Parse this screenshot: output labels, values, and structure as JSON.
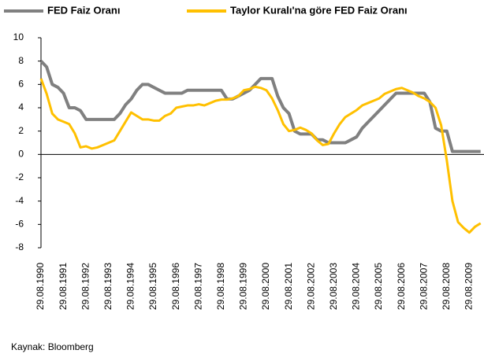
{
  "chart_data": {
    "type": "line",
    "source": "Kaynak: Bloomberg",
    "categories": [
      "29.08.1990",
      null,
      null,
      null,
      "29.08.1991",
      null,
      null,
      null,
      "29.08.1992",
      null,
      null,
      null,
      "29.08.1993",
      null,
      null,
      null,
      "29.08.1994",
      null,
      null,
      null,
      "29.08.1995",
      null,
      null,
      null,
      "29.08.1996",
      null,
      null,
      null,
      "29.08.1997",
      null,
      null,
      null,
      "29.08.1998",
      null,
      null,
      null,
      "29.08.1999",
      null,
      null,
      null,
      "29.08.2000",
      null,
      null,
      null,
      "29.08.2001",
      null,
      null,
      null,
      "29.08.2002",
      null,
      null,
      null,
      "29.08.2003",
      null,
      null,
      null,
      "29.08.2004",
      null,
      null,
      null,
      "29.08.2005",
      null,
      null,
      null,
      "29.08.2006",
      null,
      null,
      null,
      "29.08.2007",
      null,
      null,
      null,
      "29.08.2008",
      null,
      null,
      null,
      "29.08.2009",
      null,
      null
    ],
    "series": [
      {
        "name": "FED Faiz Oranı",
        "color": "#808080",
        "values": [
          8,
          7.5,
          6,
          5.75,
          5.25,
          4,
          4,
          3.75,
          3,
          3,
          3,
          3,
          3,
          3,
          3.5,
          4.25,
          4.75,
          5.5,
          6,
          6,
          5.75,
          5.5,
          5.25,
          5.25,
          5.25,
          5.25,
          5.5,
          5.5,
          5.5,
          5.5,
          5.5,
          5.5,
          5.5,
          4.75,
          4.75,
          5,
          5.25,
          5.5,
          6,
          6.5,
          6.5,
          6.5,
          5,
          4,
          3.5,
          2,
          1.75,
          1.75,
          1.75,
          1.25,
          1.25,
          1,
          1,
          1,
          1,
          1.25,
          1.5,
          2.25,
          2.75,
          3.25,
          3.75,
          4.25,
          4.75,
          5.25,
          5.25,
          5.25,
          5.25,
          5.25,
          5.25,
          4.5,
          2.25,
          2,
          2,
          0.25,
          0.25,
          0.25,
          0.25,
          0.25,
          0.25
        ]
      },
      {
        "name": "Taylor Kuralı'na göre FED Faiz Oranı",
        "color": "#FFC000",
        "values": [
          6.5,
          5.2,
          3.5,
          3,
          2.8,
          2.6,
          1.8,
          0.6,
          0.7,
          0.5,
          0.6,
          0.8,
          1,
          1.2,
          2,
          2.8,
          3.6,
          3.3,
          3,
          3,
          2.9,
          2.9,
          3.3,
          3.5,
          4,
          4.1,
          4.2,
          4.2,
          4.3,
          4.2,
          4.4,
          4.6,
          4.7,
          4.7,
          4.8,
          5,
          5.5,
          5.6,
          5.8,
          5.7,
          5.5,
          4.8,
          3.8,
          2.6,
          2,
          2.1,
          2.3,
          2.1,
          1.8,
          1.2,
          0.8,
          0.9,
          1.8,
          2.6,
          3.2,
          3.5,
          3.8,
          4.2,
          4.4,
          4.6,
          4.8,
          5.2,
          5.4,
          5.6,
          5.7,
          5.5,
          5.3,
          5,
          4.8,
          4.5,
          4,
          2.5,
          -0.5,
          -4,
          -5.8,
          -6.3,
          -6.7,
          -6.2,
          -5.9
        ]
      }
    ],
    "ylim": [
      -8,
      10
    ],
    "yticks": [
      -8,
      -6,
      -4,
      -2,
      0,
      2,
      4,
      6,
      8,
      10
    ],
    "grid": false,
    "legend": "top"
  }
}
